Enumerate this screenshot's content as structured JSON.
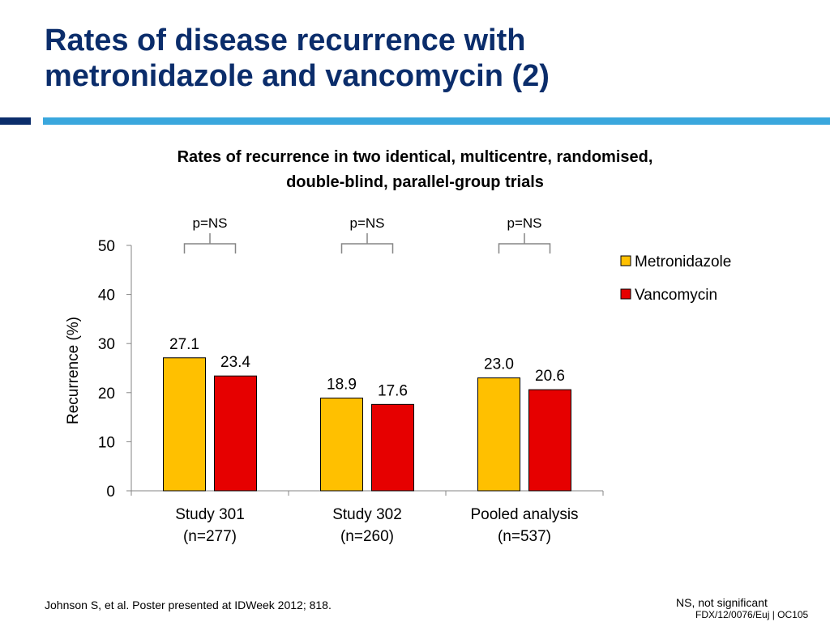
{
  "slide": {
    "title_line1": "Rates of disease recurrence with",
    "title_line2": "metronidazole and vancomycin (2)"
  },
  "colors": {
    "title": "#0b2d6b",
    "accent_dark": "#0b2d6b",
    "accent_light": "#3aa7dd",
    "metronidazole": "#ffc000",
    "vancomycin": "#e60000"
  },
  "chart_data": {
    "type": "bar",
    "title_line1": "Rates of recurrence in two identical, multicentre, randomised,",
    "title_line2": "double-blind, parallel-group trials",
    "ylabel": "Recurrence (%)",
    "ylim": [
      0,
      50
    ],
    "yticks": [
      0,
      10,
      20,
      30,
      40,
      50
    ],
    "categories": [
      {
        "line1": "Study 301",
        "line2": "(n=277)"
      },
      {
        "line1": "Study 302",
        "line2": "(n=260)"
      },
      {
        "line1": "Pooled analysis",
        "line2": "(n=537)"
      }
    ],
    "series": [
      {
        "name": "Metronidazole",
        "color": "#ffc000",
        "values": [
          27.1,
          18.9,
          23.0
        ],
        "labels": [
          "27.1",
          "18.9",
          "23.0"
        ]
      },
      {
        "name": "Vancomycin",
        "color": "#e60000",
        "values": [
          23.4,
          17.6,
          20.6
        ],
        "labels": [
          "23.4",
          "17.6",
          "20.6"
        ]
      }
    ],
    "significance": [
      "p=NS",
      "p=NS",
      "p=NS"
    ],
    "legend_position": "top-right",
    "grid": false
  },
  "footer": {
    "citation": "Johnson S, et al. Poster presented at IDWeek 2012; 818.",
    "abbreviation": "NS, not significant",
    "code": "FDX/12/0076/Euj | OC105"
  }
}
